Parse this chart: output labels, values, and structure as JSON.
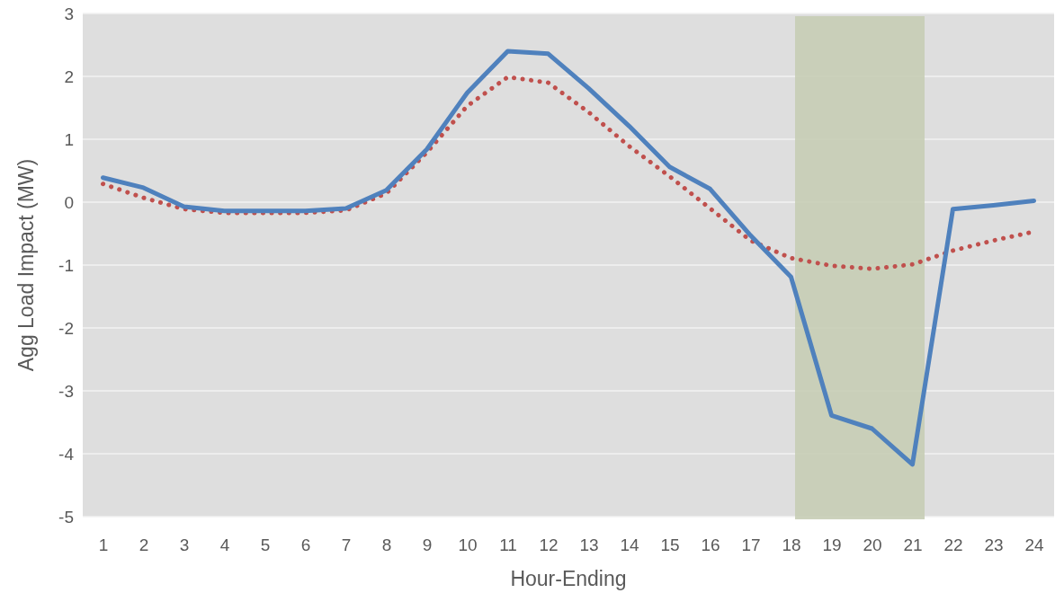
{
  "chart_data": {
    "type": "line",
    "xlabel": "Hour-Ending",
    "ylabel": "Agg Load Impact (MW)",
    "x": [
      1,
      2,
      3,
      4,
      5,
      6,
      7,
      8,
      9,
      10,
      11,
      12,
      13,
      14,
      15,
      16,
      17,
      18,
      19,
      20,
      21,
      22,
      23,
      24
    ],
    "xlim": [
      0.5,
      24.5
    ],
    "xticks": [
      1,
      2,
      3,
      4,
      5,
      6,
      7,
      8,
      9,
      10,
      11,
      12,
      13,
      14,
      15,
      16,
      17,
      18,
      19,
      20,
      21,
      22,
      23,
      24
    ],
    "ylim": [
      -5,
      3
    ],
    "yticks": [
      -5,
      -4,
      -3,
      -2,
      -1,
      0,
      1,
      2,
      3
    ],
    "grid": "y",
    "marker": "none",
    "series": [
      {
        "color": "#4f81bd",
        "line_style": "solid",
        "values": [
          0.39,
          0.23,
          -0.07,
          -0.14,
          -0.14,
          -0.14,
          -0.1,
          0.19,
          0.84,
          1.74,
          2.4,
          2.36,
          1.81,
          1.21,
          0.56,
          0.21,
          -0.53,
          -1.19,
          -3.39,
          -3.6,
          -4.17,
          -0.11,
          -0.05,
          0.02
        ]
      },
      {
        "color": "#c0504d",
        "line_style": "dotted",
        "values": [
          0.29,
          0.07,
          -0.11,
          -0.17,
          -0.17,
          -0.17,
          -0.13,
          0.14,
          0.79,
          1.53,
          1.99,
          1.9,
          1.43,
          0.89,
          0.41,
          -0.1,
          -0.61,
          -0.89,
          -1.01,
          -1.06,
          -0.99,
          -0.77,
          -0.61,
          -0.47
        ]
      }
    ],
    "bands": [
      {
        "axis": "x",
        "from": 18.1,
        "to": 21.3,
        "color": "#c6cdb5"
      }
    ]
  }
}
